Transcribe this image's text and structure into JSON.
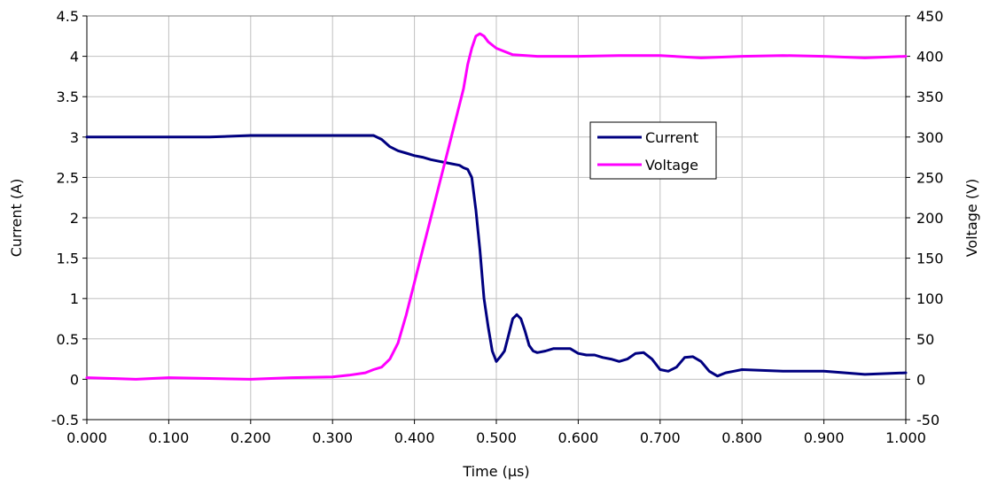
{
  "chart_data": {
    "type": "line",
    "xlabel": "Time (μs)",
    "ylabel_left": "Current (A)",
    "ylabel_right": "Voltage (V)",
    "xlim": [
      0,
      1.0
    ],
    "ylim_left": [
      -0.5,
      4.5
    ],
    "ylim_right": [
      -50,
      450
    ],
    "x_ticks": [
      "0.000",
      "0.100",
      "0.200",
      "0.300",
      "0.400",
      "0.500",
      "0.600",
      "0.700",
      "0.800",
      "0.900",
      "1.000"
    ],
    "y_ticks_left": [
      "-0.5",
      "0",
      "0.5",
      "1",
      "1.5",
      "2",
      "2.5",
      "3",
      "3.5",
      "4",
      "4.5"
    ],
    "y_ticks_right": [
      "-50",
      "0",
      "50",
      "100",
      "150",
      "200",
      "250",
      "300",
      "350",
      "400",
      "450"
    ],
    "grid": true,
    "legend_position": "center-right",
    "series": [
      {
        "name": "Current",
        "axis": "left",
        "color": "#000080",
        "x": [
          0.0,
          0.01,
          0.03,
          0.06,
          0.1,
          0.15,
          0.2,
          0.25,
          0.3,
          0.33,
          0.35,
          0.36,
          0.37,
          0.38,
          0.39,
          0.4,
          0.41,
          0.42,
          0.43,
          0.44,
          0.45,
          0.455,
          0.46,
          0.465,
          0.47,
          0.475,
          0.48,
          0.485,
          0.49,
          0.495,
          0.5,
          0.505,
          0.51,
          0.515,
          0.52,
          0.525,
          0.53,
          0.535,
          0.54,
          0.545,
          0.55,
          0.56,
          0.57,
          0.58,
          0.59,
          0.6,
          0.61,
          0.62,
          0.63,
          0.64,
          0.65,
          0.66,
          0.67,
          0.68,
          0.69,
          0.7,
          0.71,
          0.72,
          0.73,
          0.74,
          0.75,
          0.76,
          0.77,
          0.78,
          0.79,
          0.8,
          0.85,
          0.9,
          0.95,
          1.0
        ],
        "values": [
          3.0,
          3.0,
          3.0,
          3.0,
          3.0,
          3.0,
          3.02,
          3.02,
          3.02,
          3.02,
          3.02,
          2.97,
          2.88,
          2.83,
          2.8,
          2.77,
          2.75,
          2.72,
          2.7,
          2.68,
          2.66,
          2.65,
          2.62,
          2.6,
          2.5,
          2.1,
          1.6,
          1.0,
          0.65,
          0.35,
          0.22,
          0.28,
          0.35,
          0.55,
          0.75,
          0.8,
          0.75,
          0.6,
          0.42,
          0.35,
          0.33,
          0.35,
          0.38,
          0.38,
          0.38,
          0.32,
          0.3,
          0.3,
          0.27,
          0.25,
          0.22,
          0.25,
          0.32,
          0.33,
          0.25,
          0.12,
          0.1,
          0.15,
          0.27,
          0.28,
          0.22,
          0.1,
          0.04,
          0.08,
          0.1,
          0.12,
          0.1,
          0.1,
          0.06,
          0.08
        ]
      },
      {
        "name": "Voltage",
        "axis": "right",
        "color": "#ff00ff",
        "x": [
          0.0,
          0.03,
          0.06,
          0.1,
          0.15,
          0.2,
          0.25,
          0.3,
          0.32,
          0.34,
          0.35,
          0.36,
          0.37,
          0.38,
          0.39,
          0.4,
          0.41,
          0.42,
          0.43,
          0.44,
          0.45,
          0.46,
          0.465,
          0.47,
          0.475,
          0.48,
          0.485,
          0.49,
          0.5,
          0.52,
          0.55,
          0.6,
          0.65,
          0.7,
          0.75,
          0.8,
          0.85,
          0.9,
          0.95,
          1.0
        ],
        "values": [
          2,
          1,
          0,
          2,
          1,
          0,
          2,
          3,
          5,
          8,
          12,
          15,
          25,
          45,
          80,
          120,
          160,
          200,
          240,
          280,
          320,
          360,
          390,
          410,
          425,
          428,
          425,
          418,
          410,
          402,
          400,
          400,
          401,
          401,
          398,
          400,
          401,
          400,
          398,
          400
        ]
      }
    ]
  }
}
